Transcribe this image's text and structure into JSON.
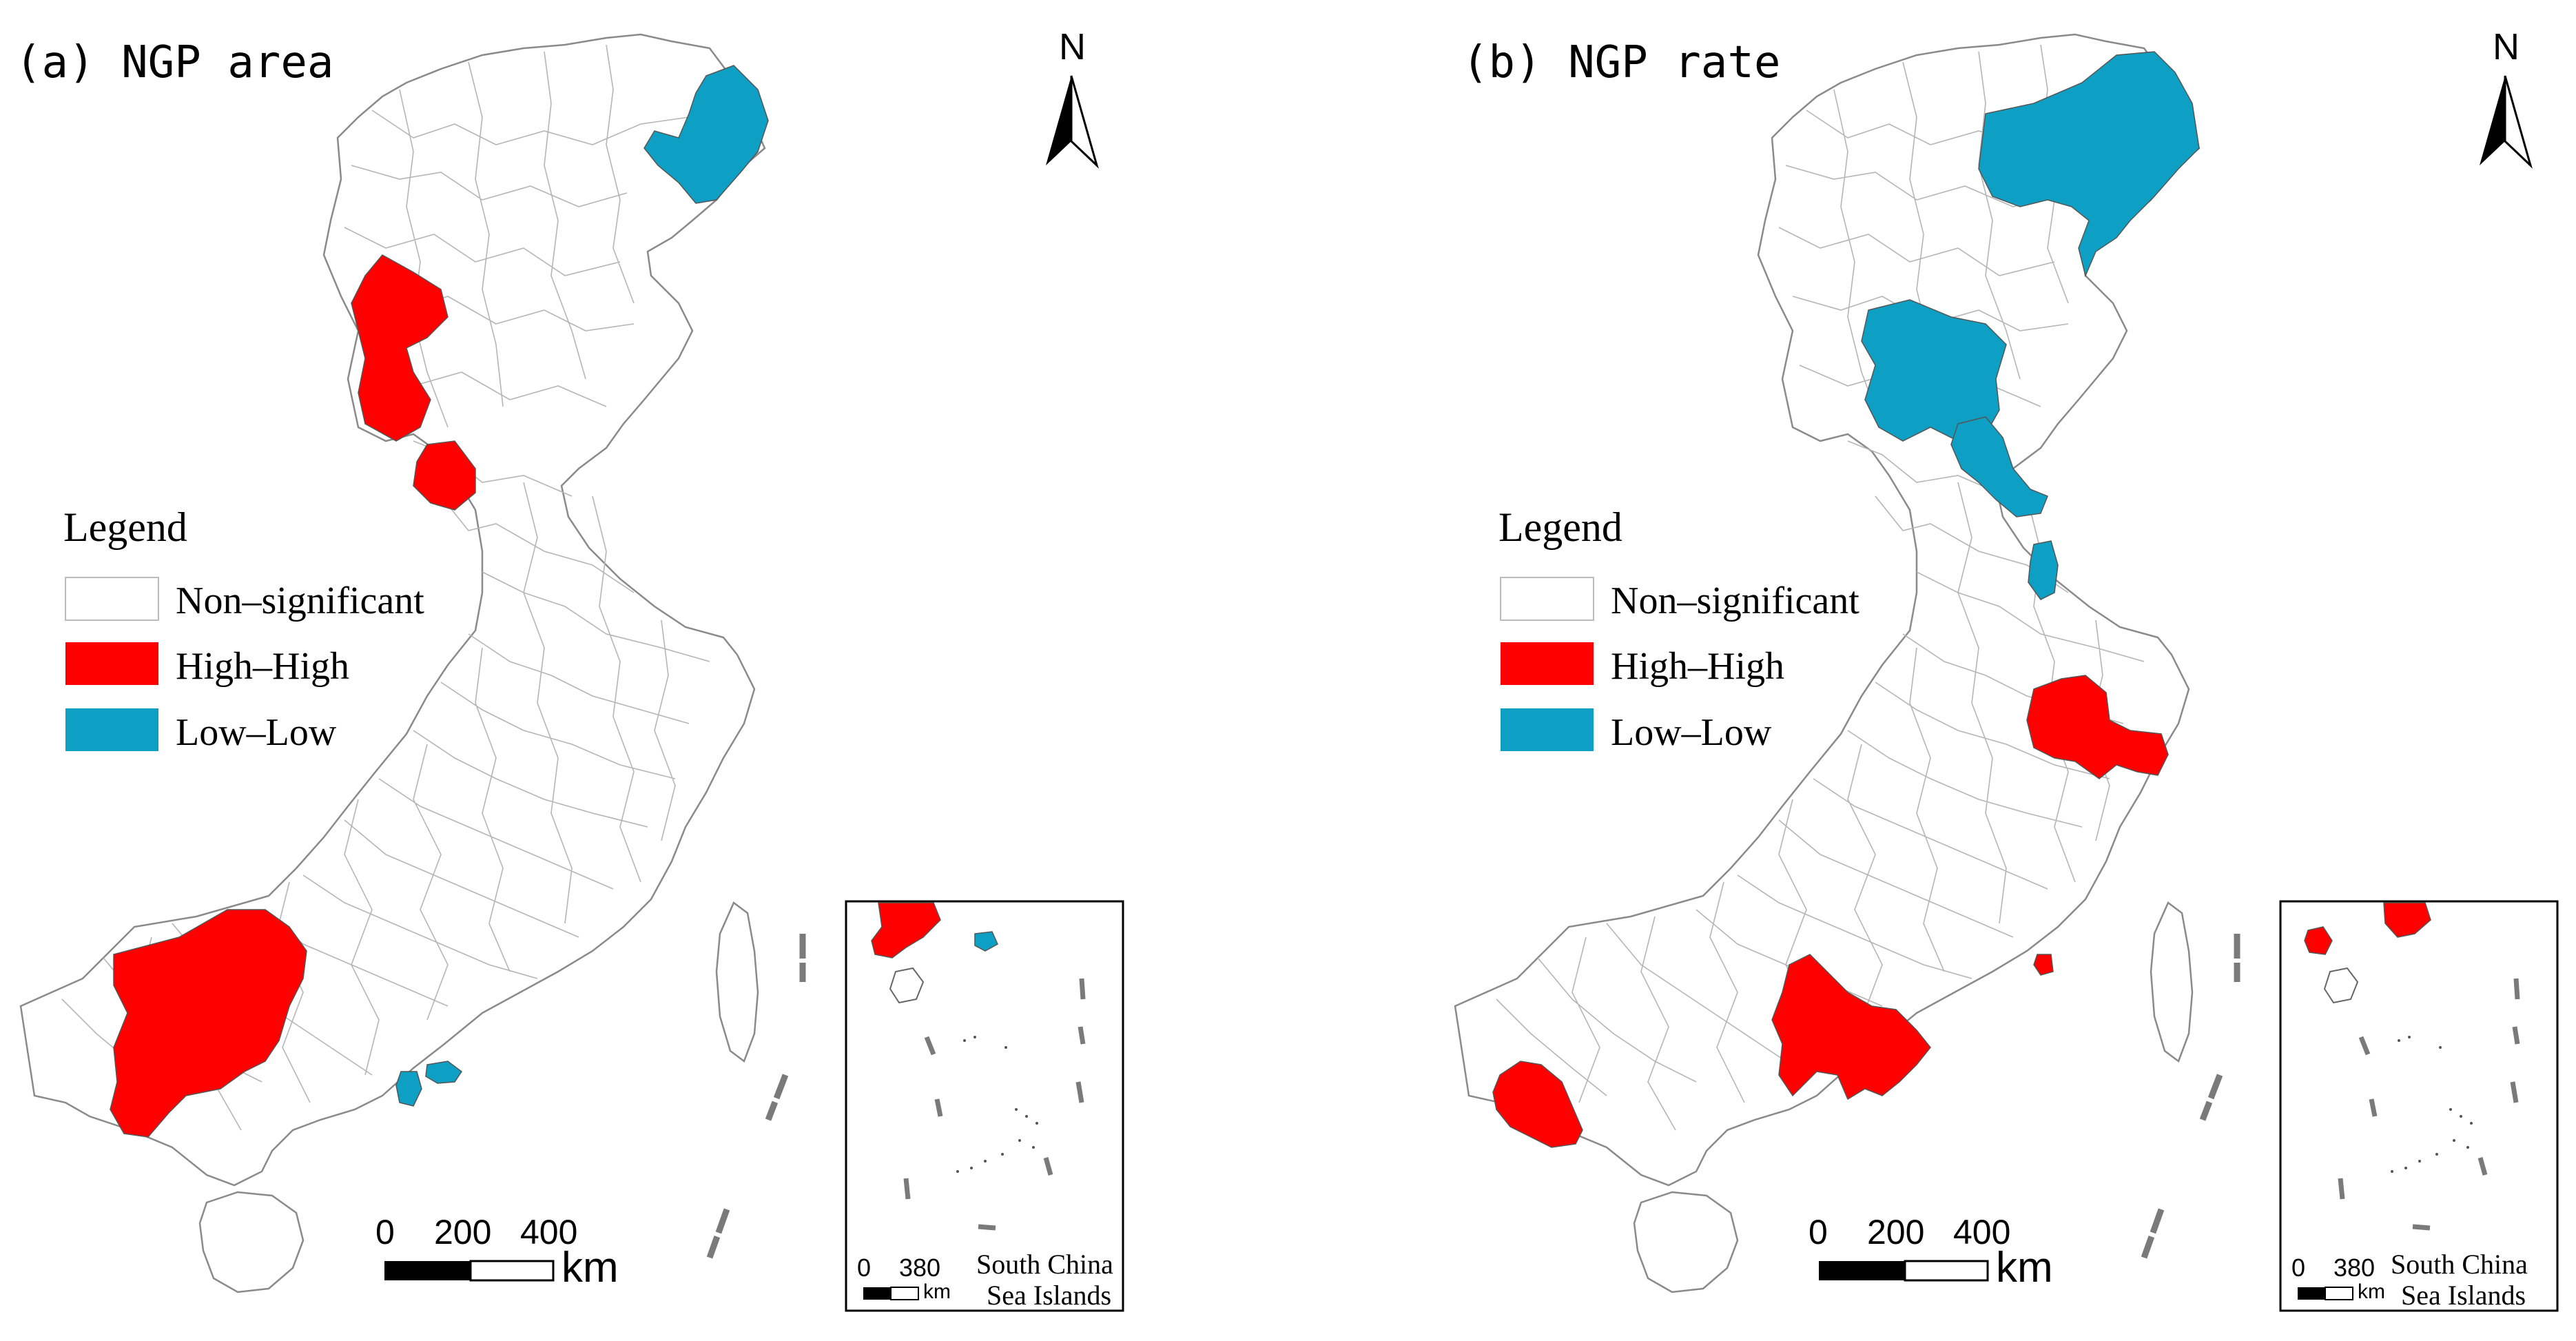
{
  "colors": {
    "non_significant": "#ffffff",
    "high_high": "#ff0000",
    "low_low": "#0da0c4",
    "boundary": "#8a8a8a"
  },
  "panels": [
    {
      "title": "(a) NGP area",
      "north": "N",
      "legend": {
        "title": "Legend",
        "items": [
          {
            "label": "Non–significant",
            "class": "non_significant"
          },
          {
            "label": "High–High",
            "class": "high_high"
          },
          {
            "label": "Low–Low",
            "class": "low_low"
          }
        ]
      },
      "scale": {
        "ticks": [
          "0",
          "200",
          "400"
        ],
        "unit": "km"
      },
      "inset": {
        "ticks": [
          "0",
          "380"
        ],
        "unit": "km",
        "label_line1": "South China",
        "label_line2": "Sea Islands"
      }
    },
    {
      "title": "(b) NGP rate",
      "north": "N",
      "legend": {
        "title": "Legend",
        "items": [
          {
            "label": "Non–significant",
            "class": "non_significant"
          },
          {
            "label": "High–High",
            "class": "high_high"
          },
          {
            "label": "Low–Low",
            "class": "low_low"
          }
        ]
      },
      "scale": {
        "ticks": [
          "0",
          "200",
          "400"
        ],
        "unit": "km"
      },
      "inset": {
        "ticks": [
          "0",
          "380"
        ],
        "unit": "km",
        "label_line1": "South China",
        "label_line2": "Sea Islands"
      }
    }
  ]
}
